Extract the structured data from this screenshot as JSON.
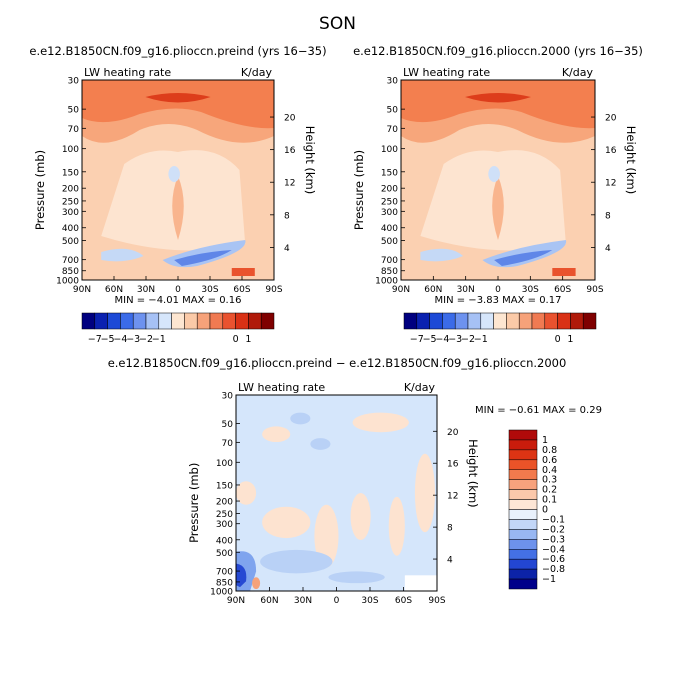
{
  "title": "SON",
  "chart_data": [
    {
      "type": "heatmap",
      "title": "e.e12.B1850CN.f09_g16.plioccn.preind (yrs 16−35)",
      "subtitle_left": "LW heating rate",
      "subtitle_right": "K/day",
      "ylabel": "Pressure (mb)",
      "ylabel_right": "Height (km)",
      "x_ticks": [
        "90N",
        "60N",
        "30N",
        "0",
        "30S",
        "60S",
        "90S"
      ],
      "y_ticks": [
        "30",
        "50",
        "70",
        "100",
        "150",
        "200",
        "250",
        "300",
        "400",
        "500",
        "700",
        "850",
        "1000"
      ],
      "y_ticks_right": [
        "20",
        "16",
        "12",
        "8",
        "4"
      ],
      "stats": {
        "min_label": "MIN =",
        "min": "−4.01",
        "max_label": "MAX =",
        "max": "0.16"
      },
      "ylim": [
        1000,
        30
      ],
      "xlim": [
        "90N",
        "90S"
      ]
    },
    {
      "type": "heatmap",
      "title": "e.e12.B1850CN.f09_g16.plioccn.2000 (yrs 16−35)",
      "subtitle_left": "LW heating rate",
      "subtitle_right": "K/day",
      "ylabel": "Pressure (mb)",
      "ylabel_right": "Height (km)",
      "x_ticks": [
        "90N",
        "60N",
        "30N",
        "0",
        "30S",
        "60S",
        "90S"
      ],
      "y_ticks": [
        "30",
        "50",
        "70",
        "100",
        "150",
        "200",
        "250",
        "300",
        "400",
        "500",
        "700",
        "850",
        "1000"
      ],
      "y_ticks_right": [
        "20",
        "16",
        "12",
        "8",
        "4"
      ],
      "stats": {
        "min_label": "MIN =",
        "min": "−3.83",
        "max_label": "MAX =",
        "max": "0.17"
      },
      "ylim": [
        1000,
        30
      ],
      "xlim": [
        "90N",
        "90S"
      ]
    },
    {
      "type": "heatmap",
      "title": "e.e12.B1850CN.f09_g16.plioccn.preind − e.e12.B1850CN.f09_g16.plioccn.2000",
      "subtitle_left": "LW heating rate",
      "subtitle_right": "K/day",
      "ylabel": "Pressure (mb)",
      "ylabel_right": "Height (km)",
      "x_ticks": [
        "90N",
        "60N",
        "30N",
        "0",
        "30S",
        "60S",
        "90S"
      ],
      "y_ticks": [
        "30",
        "50",
        "70",
        "100",
        "150",
        "200",
        "250",
        "300",
        "400",
        "500",
        "700",
        "850",
        "1000"
      ],
      "y_ticks_right": [
        "20",
        "16",
        "12",
        "8",
        "4"
      ],
      "stats": {
        "min_label": "MIN =",
        "min": "−0.61",
        "max_label": "MAX =",
        "max": "0.29"
      },
      "ylim": [
        1000,
        30
      ],
      "xlim": [
        "90N",
        "90S"
      ]
    }
  ],
  "colorbar_top": {
    "labels": [
      "−7",
      "−5",
      "−4",
      "−3",
      "−2",
      "−1",
      "0",
      "1"
    ],
    "colors": [
      "#00007f",
      "#0a21b0",
      "#1c49d6",
      "#3b6be8",
      "#6d92ef",
      "#a6c1f5",
      "#d6e6fb",
      "#fde6d1",
      "#fbcaa8",
      "#f6a27a",
      "#f07a52",
      "#e9522f",
      "#d93115",
      "#b01a0a",
      "#7f0000"
    ]
  },
  "colorbar_diff": {
    "labels": [
      "1",
      "0.8",
      "0.6",
      "0.4",
      "0.3",
      "0.2",
      "0.1",
      "0",
      "−0.1",
      "−0.2",
      "−0.3",
      "−0.4",
      "−0.6",
      "−0.8",
      "−1"
    ],
    "colors": [
      "#b00a0a",
      "#c91c0c",
      "#dc3414",
      "#ea5328",
      "#f27a4d",
      "#f7a27d",
      "#fbc8ab",
      "#fde6d6",
      "#e9f1fc",
      "#c2d6f7",
      "#98b7f2",
      "#6d92ec",
      "#4470e5",
      "#2346d2",
      "#0c23a8",
      "#00008a"
    ]
  },
  "palette": {
    "warm_dark": "#f4581d",
    "warm_mid": "#f9b07c",
    "warm_light": "#fde3cf",
    "cool_light": "#d4e5f8",
    "cool_mid": "#7ca5ef",
    "cool_dark": "#2649d3"
  }
}
